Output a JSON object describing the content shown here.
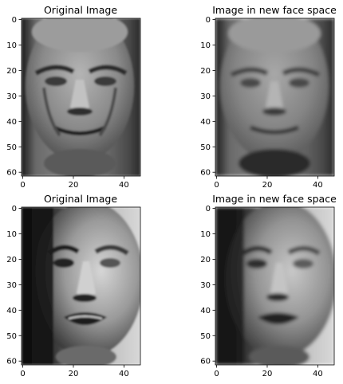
{
  "chart_data": [
    {
      "type": "heatmap",
      "title": "Original Image",
      "xlabel": "",
      "ylabel": "",
      "xlim": [
        0,
        46
      ],
      "ylim": [
        61,
        0
      ],
      "xticks": [
        0,
        20,
        40
      ],
      "yticks": [
        0,
        10,
        20,
        30,
        40,
        50,
        60
      ],
      "colormap": "gray",
      "grid": false
    },
    {
      "type": "heatmap",
      "title": "Image in new face space",
      "xlabel": "",
      "ylabel": "",
      "xlim": [
        0,
        46
      ],
      "ylim": [
        61,
        0
      ],
      "xticks": [
        0,
        20,
        40
      ],
      "yticks": [
        0,
        10,
        20,
        30,
        40,
        50,
        60
      ],
      "colormap": "gray",
      "grid": false
    },
    {
      "type": "heatmap",
      "title": "Original Image",
      "xlabel": "",
      "ylabel": "",
      "xlim": [
        0,
        46
      ],
      "ylim": [
        61,
        0
      ],
      "xticks": [
        0,
        20,
        40
      ],
      "yticks": [
        0,
        10,
        20,
        30,
        40,
        50,
        60
      ],
      "colormap": "gray",
      "grid": false
    },
    {
      "type": "heatmap",
      "title": "Image in new face space",
      "xlabel": "",
      "ylabel": "",
      "xlim": [
        0,
        46
      ],
      "ylim": [
        61,
        0
      ],
      "xticks": [
        0,
        20,
        40
      ],
      "yticks": [
        0,
        10,
        20,
        30,
        40,
        50,
        60
      ],
      "colormap": "gray",
      "grid": false
    }
  ]
}
